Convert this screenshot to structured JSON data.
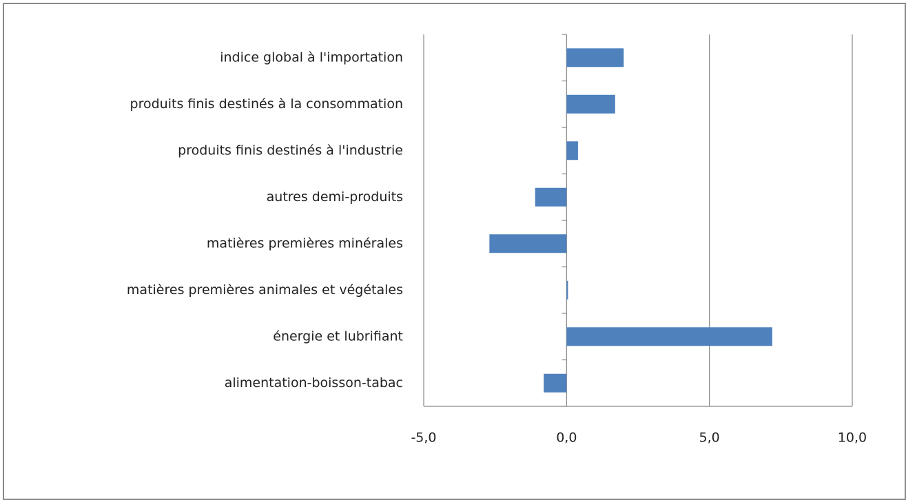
{
  "chart_data": {
    "type": "bar",
    "orientation": "horizontal",
    "categories": [
      "indice global à l'importation",
      "produits finis destinés à la consommation",
      "produits finis destinés à l'industrie",
      "autres demi-produits",
      "matières premières minérales",
      "matières premières animales et végétales",
      "énergie et lubrifiant",
      "alimentation-boisson-tabac"
    ],
    "values": [
      2.0,
      1.7,
      0.4,
      -1.1,
      -2.7,
      0.05,
      7.2,
      -0.8
    ],
    "color": "#4f81bd",
    "xlim": [
      -5,
      10
    ],
    "xticks": [
      {
        "value": -5,
        "label": "-5,0"
      },
      {
        "value": 0,
        "label": "0,0"
      },
      {
        "value": 5,
        "label": "5,0"
      },
      {
        "value": 10,
        "label": "10,0"
      }
    ],
    "grid": true
  }
}
